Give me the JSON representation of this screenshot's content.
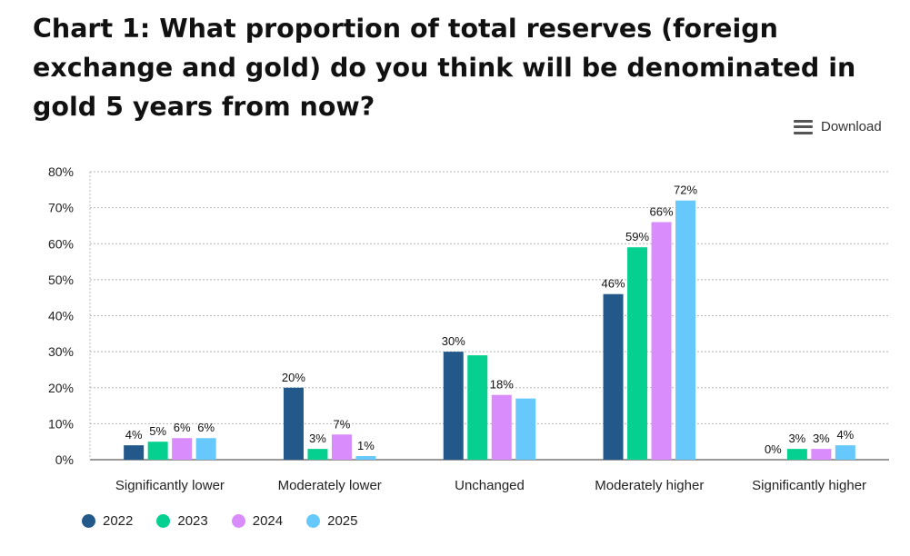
{
  "title": "Chart 1: What proportion of total reserves (foreign exchange and gold) do you think will be denominated in gold 5 years from now?",
  "download": {
    "label": "Download",
    "icon": "menu-icon"
  },
  "chart_data": {
    "type": "bar",
    "categories": [
      "Significantly lower",
      "Moderately lower",
      "Unchanged",
      "Moderately higher",
      "Significantly higher"
    ],
    "series": [
      {
        "name": "2022",
        "color": "#22588a",
        "values": [
          4,
          20,
          30,
          46,
          0
        ],
        "labels": [
          "4%",
          "20%",
          "30%",
          "46%",
          "0%"
        ]
      },
      {
        "name": "2023",
        "color": "#06d08f",
        "values": [
          5,
          3,
          29,
          59,
          3
        ],
        "labels": [
          "5%",
          "3%",
          "",
          "59%",
          "3%"
        ]
      },
      {
        "name": "2024",
        "color": "#d98cfb",
        "values": [
          6,
          7,
          18,
          66,
          3
        ],
        "labels": [
          "6%",
          "7%",
          "18%",
          "66%",
          "3%"
        ]
      },
      {
        "name": "2025",
        "color": "#67c9fb",
        "values": [
          6,
          1,
          17,
          72,
          4
        ],
        "labels": [
          "6%",
          "1%",
          "",
          "72%",
          "4%"
        ]
      }
    ],
    "ylim": [
      0,
      80
    ],
    "yticks": [
      0,
      10,
      20,
      30,
      40,
      50,
      60,
      70,
      80
    ],
    "ytick_labels": [
      "0%",
      "10%",
      "20%",
      "30%",
      "40%",
      "50%",
      "60%",
      "70%",
      "80%"
    ],
    "grid": true,
    "legend_position": "bottom-left"
  }
}
